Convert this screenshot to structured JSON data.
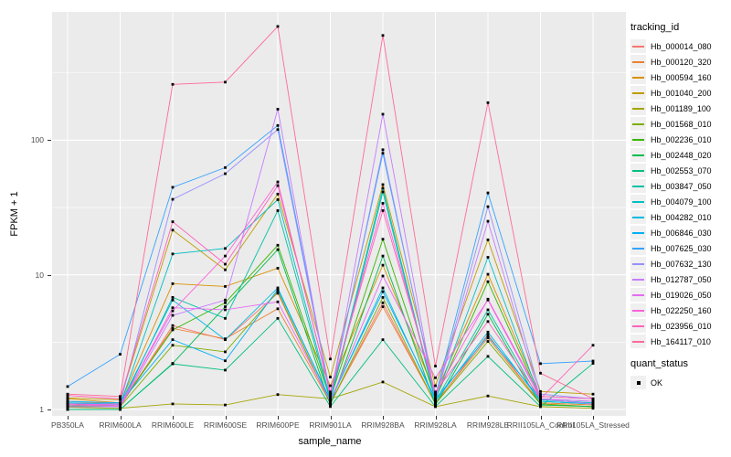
{
  "chart_data": {
    "type": "line",
    "title": "",
    "x_axis": {
      "label": "sample_name",
      "categories": [
        "PB350LA",
        "RRIM600LA",
        "RRIM600LE",
        "RRIM600SE",
        "RRIM600PE",
        "RRIM901LA",
        "RRIM928BA",
        "RRIM928LA",
        "RRIM928LE",
        "RRII105LA_Control",
        "RRII105LA_Stressed"
      ]
    },
    "y_axis": {
      "label": "FPKM + 1",
      "scale": "log10",
      "ticks": [
        "1",
        "10",
        "100"
      ],
      "range_hint": [
        1,
        700
      ],
      "grid": "major-and-minor"
    },
    "legend": {
      "position": "right",
      "color_title": "tracking_id",
      "shape_title": "quant_status",
      "shape_items": [
        "OK"
      ]
    },
    "series": [
      {
        "name": "Hb_000014_080",
        "color": "#F8766D",
        "values": [
          1.1,
          1.05,
          4.2,
          3.3,
          7.3,
          1.1,
          6.2,
          1.1,
          3.6,
          1.1,
          1.05
        ]
      },
      {
        "name": "Hb_000120_320",
        "color": "#EA8331",
        "values": [
          1.15,
          1.1,
          4.0,
          3.35,
          5.6,
          1.12,
          5.8,
          1.12,
          3.4,
          1.12,
          1.08
        ]
      },
      {
        "name": "Hb_000594_160",
        "color": "#D89000",
        "values": [
          1.2,
          1.12,
          8.6,
          8.2,
          11.2,
          1.5,
          11.8,
          1.3,
          10.1,
          1.25,
          1.2
        ]
      },
      {
        "name": "Hb_001040_200",
        "color": "#C09B00",
        "values": [
          1.22,
          1.18,
          21.5,
          10.9,
          39.8,
          1.74,
          46.8,
          1.5,
          18.2,
          1.36,
          1.3
        ]
      },
      {
        "name": "Hb_001189_100",
        "color": "#A3A500",
        "values": [
          1.04,
          1.02,
          1.1,
          1.08,
          1.29,
          1.2,
          1.6,
          1.05,
          1.26,
          1.05,
          1.02
        ]
      },
      {
        "name": "Hb_001568_010",
        "color": "#7CAE00",
        "values": [
          1.08,
          1.05,
          3.0,
          2.68,
          7.5,
          1.1,
          6.8,
          1.1,
          3.2,
          1.1,
          1.05
        ]
      },
      {
        "name": "Hb_002236_010",
        "color": "#39B600",
        "values": [
          1.06,
          1.08,
          3.9,
          6.2,
          16.6,
          1.2,
          18.4,
          1.2,
          8.9,
          1.2,
          1.1
        ]
      },
      {
        "name": "Hb_002448_020",
        "color": "#00BB4E",
        "values": [
          1.0,
          1.0,
          2.2,
          5.8,
          15.4,
          1.08,
          13.8,
          1.08,
          5.1,
          1.08,
          1.05
        ]
      },
      {
        "name": "Hb_002553_070",
        "color": "#00BF7D",
        "values": [
          1.0,
          1.0,
          2.18,
          1.96,
          4.75,
          1.05,
          3.3,
          1.05,
          2.48,
          1.05,
          2.2
        ]
      },
      {
        "name": "Hb_003847_050",
        "color": "#00C1A3",
        "values": [
          1.05,
          1.05,
          6.8,
          4.75,
          30.0,
          1.15,
          41.3,
          1.15,
          5.5,
          1.15,
          1.1
        ]
      },
      {
        "name": "Hb_004079_100",
        "color": "#00BFC4",
        "values": [
          1.1,
          1.08,
          14.3,
          15.7,
          36.2,
          1.2,
          44.0,
          1.18,
          13.5,
          1.18,
          1.12
        ]
      },
      {
        "name": "Hb_004282_010",
        "color": "#00BAE0",
        "values": [
          1.12,
          1.1,
          6.5,
          3.3,
          8.0,
          1.15,
          8.0,
          1.15,
          3.76,
          1.15,
          1.1
        ]
      },
      {
        "name": "Hb_006846_030",
        "color": "#00B0F6",
        "values": [
          1.15,
          1.12,
          3.3,
          2.3,
          7.8,
          1.18,
          7.5,
          1.2,
          3.5,
          1.2,
          1.15
        ]
      },
      {
        "name": "Hb_007625_030",
        "color": "#35A2FF",
        "values": [
          1.48,
          2.57,
          44.7,
          62.6,
          128.6,
          1.3,
          80.0,
          1.25,
          40.6,
          2.19,
          2.29
        ]
      },
      {
        "name": "Hb_007632_130",
        "color": "#9590FF",
        "values": [
          1.1,
          1.1,
          36.4,
          56.4,
          120.0,
          1.25,
          85.0,
          1.2,
          32.1,
          1.3,
          1.2
        ]
      },
      {
        "name": "Hb_012787_050",
        "color": "#C77CFF",
        "values": [
          1.05,
          1.05,
          5.0,
          6.5,
          170.0,
          1.2,
          156.0,
          1.2,
          25.0,
          1.2,
          1.1
        ]
      },
      {
        "name": "Hb_019026_050",
        "color": "#E76BF3",
        "values": [
          1.08,
          1.06,
          5.7,
          5.5,
          6.3,
          1.15,
          9.8,
          1.72,
          6.5,
          1.2,
          1.15
        ]
      },
      {
        "name": "Hb_022250_160",
        "color": "#FA62DB",
        "values": [
          1.1,
          1.08,
          5.4,
          13.8,
          49.0,
          1.3,
          34.0,
          1.3,
          6.6,
          1.25,
          1.2
        ]
      },
      {
        "name": "Hb_023956_010",
        "color": "#FF62BC",
        "values": [
          1.27,
          1.2,
          24.8,
          12.0,
          46.0,
          1.35,
          30.0,
          1.35,
          4.5,
          1.2,
          3.0
        ]
      },
      {
        "name": "Hb_164117_010",
        "color": "#FF6A98",
        "values": [
          1.3,
          1.25,
          260,
          270,
          700,
          2.37,
          600,
          2.1,
          190,
          1.86,
          1.2
        ]
      }
    ],
    "style": {
      "panel_bg": "#EBEBEB",
      "grid_color": "#FFFFFF",
      "marker_color": "#000000",
      "axis_text_color": "#4D4D4D",
      "legend_key_bg": "#F0F0F0"
    }
  }
}
